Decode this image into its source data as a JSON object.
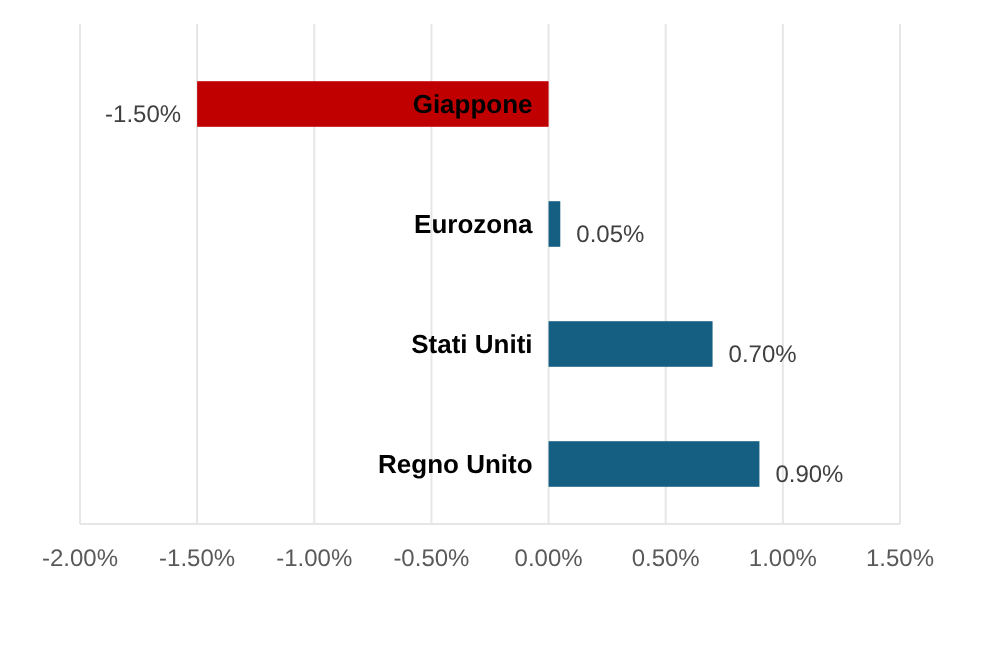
{
  "chart_data": {
    "type": "bar",
    "orientation": "horizontal",
    "categories": [
      "Giappone",
      "Eurozona",
      "Stati Uniti",
      "Regno Unito"
    ],
    "values": [
      -1.5,
      0.05,
      0.7,
      0.9
    ],
    "colors": [
      "#c00000",
      "#156082",
      "#156082",
      "#156082"
    ],
    "value_labels": [
      "-1.50%",
      "0.05%",
      "0.70%",
      "0.90%"
    ],
    "xlim": [
      -2.0,
      1.5
    ],
    "xticks": [
      {
        "value": -2.0,
        "label": "-2.00%"
      },
      {
        "value": -1.5,
        "label": "-1.50%"
      },
      {
        "value": -1.0,
        "label": "-1.00%"
      },
      {
        "value": -0.5,
        "label": "-0.50%"
      },
      {
        "value": 0,
        "label": "0.00%"
      },
      {
        "value": 0.5,
        "label": "0.50%"
      },
      {
        "value": 1.0,
        "label": "1.00%"
      },
      {
        "value": 1.5,
        "label": "1.50%"
      }
    ],
    "grid": "x"
  }
}
